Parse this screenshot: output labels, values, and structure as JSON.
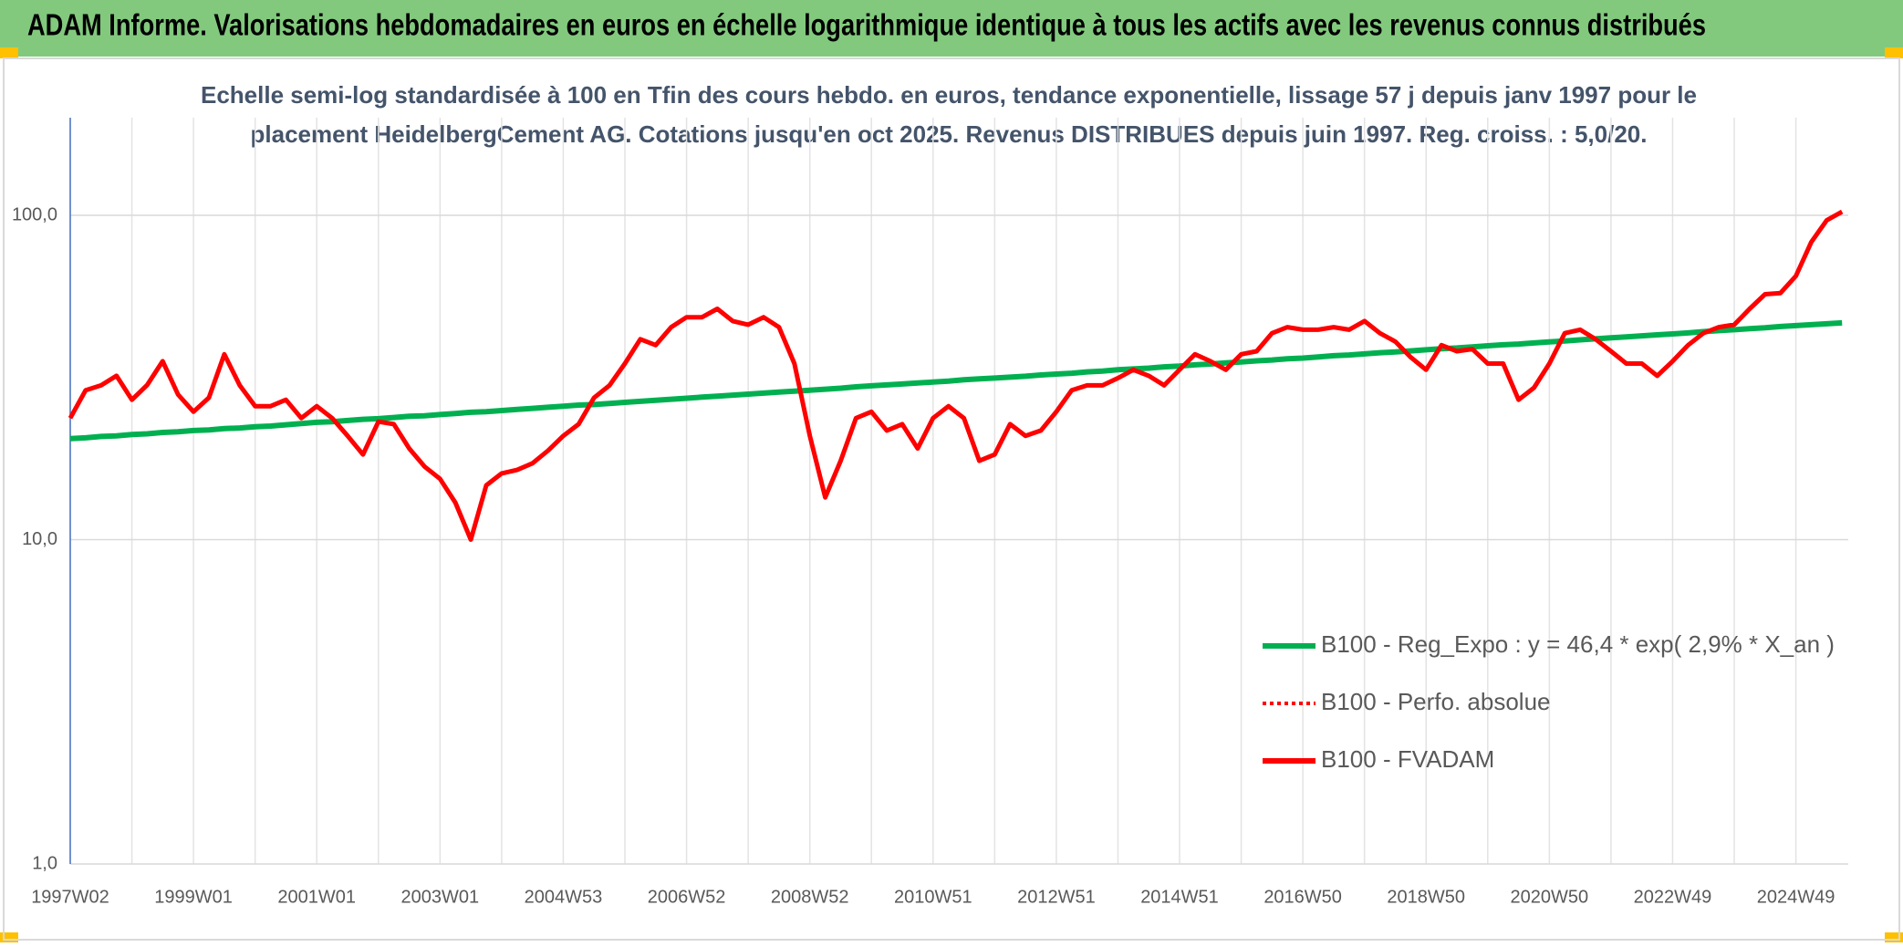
{
  "header": {
    "title": "ADAM Informe. Valorisations hebdomadaires en euros en échelle logarithmique identique à tous les actifs avec les revenus connus distribués"
  },
  "chart_data": {
    "type": "line",
    "title": [
      "Echelle semi-log standardisée à 100 en Tfin des cours hebdo. en euros, tendance exponentielle, lissage 57 j depuis janv 1997 pour le",
      "placement HeidelbergCement AG. Cotations jusqu'en oct 2025. Revenus DISTRIBUES depuis juin 1997. Reg. croiss. : 5,0/20."
    ],
    "categories": [
      "1997W02",
      null,
      null,
      null,
      null,
      null,
      null,
      null,
      "1999W01",
      null,
      null,
      null,
      null,
      null,
      null,
      null,
      "2001W01",
      null,
      null,
      null,
      null,
      null,
      null,
      null,
      "2003W01",
      null,
      null,
      null,
      null,
      null,
      null,
      null,
      "2004W53",
      null,
      null,
      null,
      null,
      null,
      null,
      null,
      "2006W52",
      null,
      null,
      null,
      null,
      null,
      null,
      null,
      "2008W52",
      null,
      null,
      null,
      null,
      null,
      null,
      null,
      "2010W51",
      null,
      null,
      null,
      null,
      null,
      null,
      null,
      "2012W51",
      null,
      null,
      null,
      null,
      null,
      null,
      null,
      "2014W51",
      null,
      null,
      null,
      null,
      null,
      null,
      null,
      "2016W50",
      null,
      null,
      null,
      null,
      null,
      null,
      null,
      "2018W50",
      null,
      null,
      null,
      null,
      null,
      null,
      null,
      "2020W50",
      null,
      null,
      null,
      null,
      null,
      null,
      null,
      "2022W49",
      null,
      null,
      null,
      null,
      null,
      null,
      null,
      "2024W49",
      null,
      null,
      null
    ],
    "series": [
      {
        "name": "B100 - Reg_Expo : y = 46,4 * exp( 2,9% *  X_an )",
        "color": "#00b050",
        "style": "solid",
        "values": [
          20.5,
          20.6,
          20.8,
          20.9,
          21.1,
          21.2,
          21.4,
          21.5,
          21.7,
          21.8,
          22.0,
          22.1,
          22.3,
          22.4,
          22.6,
          22.8,
          23.0,
          23.1,
          23.3,
          23.5,
          23.6,
          23.8,
          24.0,
          24.1,
          24.3,
          24.5,
          24.7,
          24.8,
          25.0,
          25.2,
          25.4,
          25.6,
          25.8,
          26.0,
          26.1,
          26.3,
          26.5,
          26.7,
          26.9,
          27.1,
          27.3,
          27.5,
          27.7,
          27.9,
          28.1,
          28.3,
          28.5,
          28.7,
          28.9,
          29.1,
          29.3,
          29.6,
          29.8,
          30.0,
          30.2,
          30.4,
          30.6,
          30.8,
          31.1,
          31.3,
          31.5,
          31.7,
          31.9,
          32.2,
          32.4,
          32.6,
          32.9,
          33.1,
          33.4,
          33.6,
          33.8,
          34.1,
          34.3,
          34.6,
          34.8,
          35.1,
          35.3,
          35.6,
          35.8,
          36.1,
          36.3,
          36.6,
          36.9,
          37.1,
          37.4,
          37.7,
          37.9,
          38.2,
          38.5,
          38.8,
          39.0,
          39.3,
          39.6,
          39.9,
          40.1,
          40.4,
          40.7,
          41.0,
          41.3,
          41.6,
          41.9,
          42.2,
          42.5,
          42.8,
          43.1,
          43.4,
          43.8,
          44.1,
          44.4,
          44.7,
          45.0,
          45.4,
          45.7,
          46.0,
          46.3,
          46.6
        ]
      },
      {
        "name": "B100 - Perfo. absolue",
        "color": "#ff0000",
        "style": "dotted"
      },
      {
        "name": "B100 - FVADAM",
        "color": "#ff0000",
        "style": "solid",
        "values": [
          23.7,
          28.9,
          29.9,
          32.0,
          27.0,
          30.0,
          35.5,
          28.0,
          24.8,
          27.4,
          37.3,
          29.9,
          25.8,
          25.8,
          27.0,
          23.7,
          25.8,
          23.7,
          20.9,
          18.3,
          23.1,
          22.7,
          19.1,
          16.8,
          15.4,
          13.0,
          10.0,
          14.7,
          16.0,
          16.4,
          17.2,
          18.8,
          20.9,
          22.7,
          27.4,
          29.9,
          34.9,
          41.5,
          39.8,
          45.2,
          48.5,
          48.5,
          51.5,
          47.2,
          46.0,
          48.5,
          45.2,
          34.9,
          20.9,
          13.5,
          17.5,
          23.7,
          24.8,
          21.7,
          22.7,
          19.1,
          23.7,
          25.8,
          23.7,
          17.5,
          18.3,
          22.7,
          20.9,
          21.7,
          24.8,
          28.9,
          29.9,
          29.9,
          31.5,
          33.4,
          32.0,
          29.9,
          33.4,
          37.3,
          35.5,
          33.4,
          37.3,
          38.1,
          43.3,
          45.2,
          44.4,
          44.4,
          45.2,
          44.4,
          47.2,
          43.3,
          40.8,
          36.5,
          33.4,
          39.8,
          38.1,
          38.7,
          34.9,
          34.9,
          27.0,
          29.4,
          34.9,
          43.3,
          44.4,
          41.5,
          38.1,
          34.9,
          34.9,
          32.0,
          35.5,
          39.8,
          43.3,
          45.2,
          46.0,
          51.5,
          57.1,
          57.6,
          65.0,
          82.7,
          96.6,
          102.6
        ]
      }
    ],
    "log_y": true,
    "ylim": [
      1,
      200
    ],
    "yticks": [
      {
        "value": 1,
        "label": "1,0"
      },
      {
        "value": 10,
        "label": "10,0"
      },
      {
        "value": 100,
        "label": "100,0"
      }
    ],
    "grid": true,
    "legend": "lower right"
  }
}
